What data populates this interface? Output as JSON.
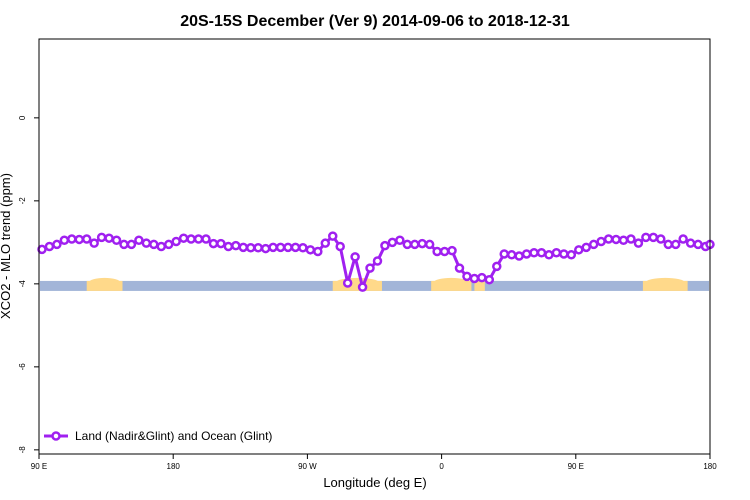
{
  "chart_data": {
    "type": "line",
    "title": "20S-15S December (Ver 9)   2014-09-06 to 2018-12-31",
    "xlabel": "Longitude (deg E)",
    "ylabel": "XCO2 - MLO trend (ppm)",
    "x_ticks": [
      {
        "value": 90,
        "label": "90 E"
      },
      {
        "value": 180,
        "label": "180"
      },
      {
        "value": 270,
        "label": "90 W"
      },
      {
        "value": 360,
        "label": "0"
      },
      {
        "value": 450,
        "label": "90 E"
      },
      {
        "value": 540,
        "label": "180"
      }
    ],
    "y_ticks": [
      {
        "value": 0,
        "label": "0"
      },
      {
        "value": -2,
        "label": "-2"
      },
      {
        "value": -4,
        "label": "-4"
      },
      {
        "value": -6,
        "label": "-6"
      },
      {
        "value": -8,
        "label": "-8"
      }
    ],
    "xlim": [
      90,
      540
    ],
    "ylim": [
      -8.1,
      1.9
    ],
    "colors": {
      "series": "#a020f0",
      "ocean": "#a2b5d8",
      "land": "#ffd98a"
    },
    "surface_strip": {
      "y": -4.05,
      "land_ranges": [
        [
          122,
          146
        ],
        [
          287,
          320
        ],
        [
          353,
          380
        ],
        [
          382,
          389
        ],
        [
          495,
          525
        ]
      ]
    },
    "series": [
      {
        "name": "Land (Nadir&Glint) and Ocean (Glint)",
        "x": [
          92,
          97,
          102,
          107,
          112,
          117,
          122,
          127,
          132,
          137,
          142,
          147,
          152,
          157,
          162,
          167,
          172,
          177,
          182,
          187,
          192,
          197,
          202,
          207,
          212,
          217,
          222,
          227,
          232,
          237,
          242,
          247,
          252,
          257,
          262,
          267,
          272,
          277,
          282,
          287,
          292,
          297,
          302,
          307,
          312,
          317,
          322,
          327,
          332,
          337,
          342,
          347,
          352,
          357,
          362,
          367,
          372,
          377,
          382,
          387,
          392,
          397,
          402,
          407,
          412,
          417,
          422,
          427,
          432,
          437,
          442,
          447,
          452,
          457,
          462,
          467,
          472,
          477,
          482,
          487,
          492,
          497,
          502,
          507,
          512,
          517,
          522,
          527,
          532,
          537,
          540
        ],
        "y": [
          -3.17,
          -3.1,
          -3.05,
          -2.95,
          -2.92,
          -2.93,
          -2.92,
          -3.02,
          -2.88,
          -2.9,
          -2.95,
          -3.05,
          -3.05,
          -2.95,
          -3.02,
          -3.05,
          -3.1,
          -3.05,
          -2.98,
          -2.9,
          -2.92,
          -2.92,
          -2.92,
          -3.03,
          -3.03,
          -3.1,
          -3.08,
          -3.12,
          -3.13,
          -3.13,
          -3.15,
          -3.12,
          -3.12,
          -3.12,
          -3.12,
          -3.13,
          -3.18,
          -3.22,
          -3.02,
          -2.85,
          -3.1,
          -3.98,
          -3.35,
          -4.08,
          -3.62,
          -3.45,
          -3.08,
          -3.0,
          -2.95,
          -3.05,
          -3.05,
          -3.03,
          -3.05,
          -3.22,
          -3.22,
          -3.2,
          -3.62,
          -3.82,
          -3.87,
          -3.85,
          -3.9,
          -3.58,
          -3.28,
          -3.3,
          -3.33,
          -3.28,
          -3.25,
          -3.25,
          -3.3,
          -3.25,
          -3.28,
          -3.3,
          -3.18,
          -3.12,
          -3.05,
          -2.98,
          -2.92,
          -2.93,
          -2.95,
          -2.92,
          -3.02,
          -2.88,
          -2.88,
          -2.92,
          -3.05,
          -3.05,
          -2.92,
          -3.02,
          -3.05,
          -3.1,
          -3.05
        ]
      }
    ],
    "legend": {
      "position": "bottom-left",
      "label": "Land (Nadir&Glint) and Ocean (Glint)"
    }
  }
}
